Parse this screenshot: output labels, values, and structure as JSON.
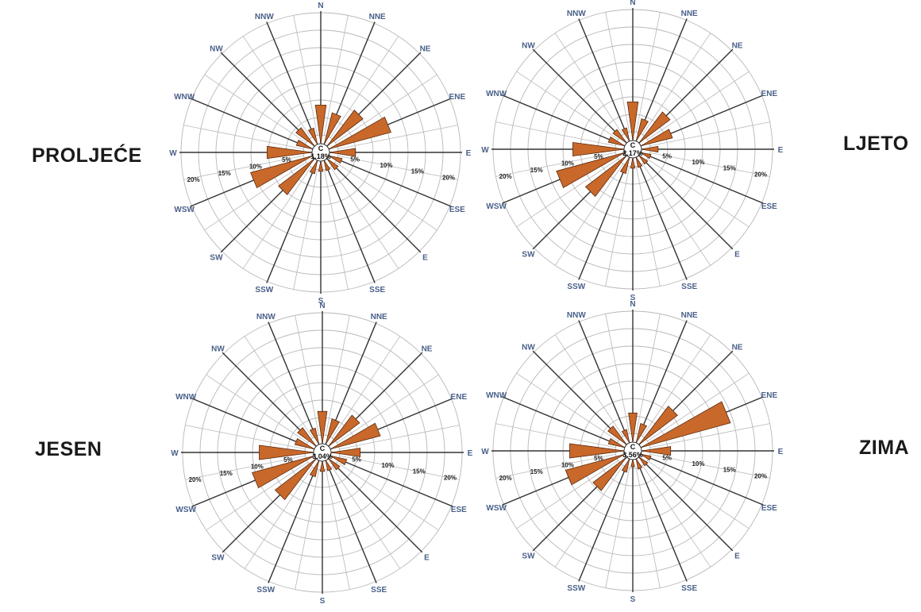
{
  "colors": {
    "wedge": "#c8682a",
    "wedge_edge": "#5a2a10",
    "direction_label": "#4a6089",
    "grid": "#b8b8b8",
    "spoke": "#333333"
  },
  "chart_data": [
    {
      "type": "wind-rose",
      "title": "PROLJEĆE",
      "directions": [
        "N",
        "NNE",
        "NE",
        "ENE",
        "E",
        "ESE",
        "E",
        "SSE",
        "S",
        "SSW",
        "SW",
        "WSW",
        "W",
        "WNW",
        "NW",
        "NNW"
      ],
      "ring_labels": [
        "5%",
        "10%",
        "15%",
        "20%"
      ],
      "rmax": 22,
      "calm_label": "C",
      "calm_value": "1.18%",
      "values": [
        7.5,
        6.5,
        8.5,
        11.5,
        5.5,
        3.5,
        3.5,
        3,
        3,
        3.5,
        8.5,
        11.5,
        8.5,
        4,
        5,
        4
      ]
    },
    {
      "type": "wind-rose",
      "title": "LJETO",
      "directions": [
        "N",
        "NNE",
        "NE",
        "ENE",
        "E",
        "ESE",
        "E",
        "SSE",
        "S",
        "SSW",
        "SW",
        "WSW",
        "W",
        "WNW",
        "NW",
        "NNW"
      ],
      "ring_labels": [
        "5%",
        "10%",
        "15%",
        "20%"
      ],
      "rmax": 22,
      "calm_label": "C",
      "calm_value": "2.17%",
      "values": [
        7.5,
        5,
        7.5,
        6.5,
        4,
        3,
        3,
        3,
        3,
        4,
        9.5,
        12.5,
        9.5,
        4,
        4,
        3.5
      ]
    },
    {
      "type": "wind-rose",
      "title": "JESEN",
      "directions": [
        "N",
        "NNE",
        "NE",
        "ENE",
        "E",
        "ESE",
        "E",
        "SSE",
        "S",
        "SSW",
        "SW",
        "WSW",
        "W",
        "WNW",
        "NW",
        "NNW"
      ],
      "ring_labels": [
        "5%",
        "10%",
        "15%",
        "20%"
      ],
      "rmax": 22,
      "calm_label": "C",
      "calm_value": "3.04%",
      "values": [
        6.5,
        5.5,
        7.5,
        9.5,
        6,
        4,
        3.5,
        3,
        3,
        4,
        9.5,
        11.5,
        10,
        4.5,
        5,
        4
      ]
    },
    {
      "type": "wind-rose",
      "title": "ZIMA",
      "directions": [
        "N",
        "NNE",
        "NE",
        "ENE",
        "E",
        "ESE",
        "E",
        "SSE",
        "S",
        "SSW",
        "SW",
        "WSW",
        "W",
        "WNW",
        "NW",
        "NNW"
      ],
      "ring_labels": [
        "5%",
        "10%",
        "15%",
        "20%"
      ],
      "rmax": 22,
      "calm_label": "C",
      "calm_value": "3.56%",
      "values": [
        6,
        4.5,
        9,
        16,
        6,
        3,
        3,
        3,
        2.5,
        3.5,
        8,
        11,
        10,
        4,
        5,
        3.5
      ]
    }
  ]
}
